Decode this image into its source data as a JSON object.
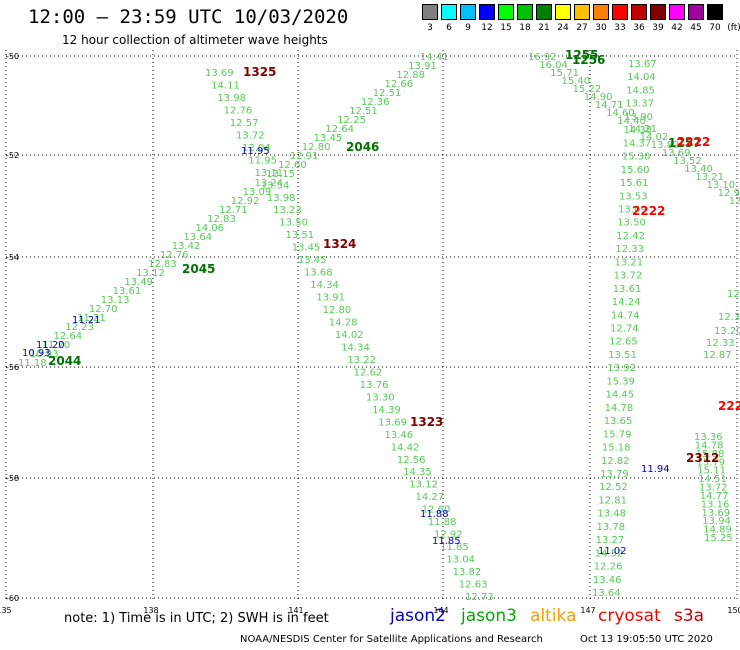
{
  "title": "12:00 – 23:59 UTC 10/03/2020",
  "subtitle": "12 hour collection of altimeter wave heights",
  "color_scale": {
    "labels": [
      "3",
      "6",
      "9",
      "12",
      "15",
      "18",
      "21",
      "24",
      "27",
      "30",
      "33",
      "36",
      "39",
      "42",
      "45",
      "70",
      "(ft)"
    ],
    "colors": [
      "#7f7f7f",
      "#00ffff",
      "#00bfff",
      "#0000ff",
      "#00ff00",
      "#00c000",
      "#008000",
      "#ffff00",
      "#ffc000",
      "#ff8000",
      "#ff0000",
      "#c00000",
      "#800000",
      "#ff00ff",
      "#a000a0",
      "#000000"
    ]
  },
  "axes": {
    "lat_labels": [
      "-50",
      "-52",
      "-54",
      "-56",
      "-58",
      "-60"
    ],
    "lon_labels": [
      "135",
      "138",
      "141",
      "144",
      "147",
      "150"
    ]
  },
  "pass_labels": [
    {
      "text": "1325",
      "color": "#800000"
    },
    {
      "text": "2046",
      "color": "#007000"
    },
    {
      "text": "1324",
      "color": "#800000"
    },
    {
      "text": "2045",
      "color": "#007000"
    },
    {
      "text": "2044",
      "color": "#007000"
    },
    {
      "text": "1323",
      "color": "#800000"
    },
    {
      "text": "1256",
      "color": "#007000"
    },
    {
      "text": "1255",
      "color": "#007000"
    },
    {
      "text": "1257",
      "color": "#007000"
    },
    {
      "text": "2222",
      "color": "#ff0000"
    },
    {
      "text": "2222",
      "color": "#ff0000"
    },
    {
      "text": "222",
      "color": "#ff0000"
    },
    {
      "text": "2312",
      "color": "#800000"
    }
  ],
  "tracks": {
    "track_1325": {
      "color": "#55cc55",
      "values": [
        "13.69",
        "14.11",
        "13.98",
        "12.76",
        "12.57",
        "13.72",
        "12.04",
        "11.95",
        "13.11",
        "13.54",
        "13.98",
        "13.23",
        "13.50",
        "13.51",
        "13.45",
        "13.45",
        "13.68",
        "14.34",
        "13.91",
        "12.80",
        "14.28",
        "14.02",
        "14.34",
        "13.22",
        "12.62",
        "13.76",
        "13.30",
        "14.39",
        "13.69",
        "13.46",
        "14.42",
        "12.56",
        "14.35",
        "13.12",
        "14.27",
        "12.60",
        "11.88",
        "12.92",
        "11.85",
        "13.04",
        "13.82",
        "12.63",
        "12.73"
      ]
    },
    "track_2046": {
      "color": "#55cc55",
      "values": [
        "11.18",
        "10.93",
        "11.20",
        "12.64",
        "12.23",
        "11.21",
        "12.70",
        "13.13",
        "13.61",
        "13.49",
        "13.12",
        "12.83",
        "12.76",
        "13.42",
        "13.64",
        "14.06",
        "12.83",
        "12.71",
        "12.92",
        "13.09",
        "13.24",
        "13.15",
        "12.60",
        "12.91",
        "12.80",
        "13.45",
        "12.64",
        "12.25",
        "12.51",
        "12.36",
        "12.51",
        "12.66",
        "12.88",
        "13.91",
        "14.41"
      ]
    },
    "track_1256": {
      "color": "#55cc55",
      "values": [
        "16.92",
        "16.04",
        "15.71",
        "15.40",
        "15.22",
        "14.90",
        "14.71",
        "14.60",
        "14.40",
        "14.21",
        "14.02",
        "13.82",
        "13.69",
        "13.52",
        "13.40",
        "13.21",
        "13.10",
        "12.96",
        "12.80",
        "12.72"
      ]
    },
    "track_2222": {
      "color": "#55cc55",
      "values": [
        "13.67",
        "14.04",
        "14.85",
        "13.37",
        "13.90",
        "14.38",
        "14.37",
        "15.30",
        "15.60",
        "15.61",
        "13.53",
        "13.09",
        "13.50",
        "12.42",
        "12.33",
        "13.21",
        "13.72",
        "13.61",
        "14.24",
        "14.74",
        "12.74",
        "12.65",
        "13.51",
        "13.92",
        "15.39",
        "14.45",
        "14.78",
        "13.65",
        "15.79",
        "15.18",
        "12.82",
        "13.79",
        "12.52",
        "12.81",
        "13.48",
        "13.78",
        "13.27",
        "14.52",
        "12.26",
        "13.46",
        "13.64"
      ]
    },
    "track_2312": {
      "color": "#55cc55",
      "values": [
        "13.36",
        "14.78",
        "15.88",
        "15.79",
        "15.11",
        "14.51",
        "13.72",
        "14.77",
        "13.16",
        "13.69",
        "13.94",
        "14.89",
        "15.25"
      ]
    },
    "blue_points": {
      "color": "#0000cc",
      "values": [
        "11.95",
        "11.20",
        "10.93",
        "11.21",
        "11.88",
        "11.85",
        "11.94",
        "11.02"
      ]
    },
    "edge_values": {
      "color": "#55cc55",
      "values": [
        "12.",
        "12.3",
        "13.20",
        "12.33",
        "12.87"
      ]
    }
  },
  "footer": {
    "note": "note:  1) Time is in UTC;  2) SWH is in feet",
    "satellites": [
      {
        "name": "jason2",
        "color": "#0000cc"
      },
      {
        "name": "jason3",
        "color": "#00aa00"
      },
      {
        "name": "altika",
        "color": "#ff9900"
      },
      {
        "name": "cryosat",
        "color": "#ff0000"
      },
      {
        "name": "s3a",
        "color": "#cc0000"
      }
    ],
    "credit": "NOAA/NESDIS Center for Satellite Applications and Research",
    "timestamp": "Oct 13 19:05:50 UTC 2020"
  }
}
